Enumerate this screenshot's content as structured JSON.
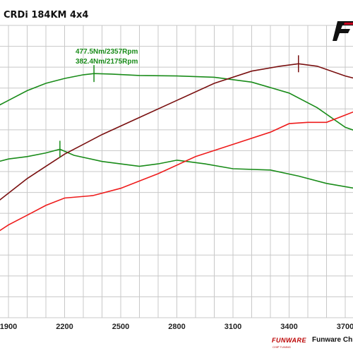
{
  "title": "CRDi 184KM 4x4",
  "brand": {
    "logo_text": "FUNWARE",
    "logo_sub": "CHIP TUNING",
    "footer_text": "Funware Chip",
    "accent_color": "#c8001e"
  },
  "chart_data": {
    "type": "line",
    "xlim": [
      1800,
      3950
    ],
    "ylim": [
      0,
      12
    ],
    "grid": true,
    "x_ticks": [
      1900,
      2200,
      2500,
      2800,
      3100,
      3400,
      3700
    ],
    "x_tick_labels": [
      "1900",
      "2200",
      "2500",
      "2800",
      "3100",
      "3400",
      "3700"
    ],
    "annotations": [
      {
        "text": "477.5Nm/2357Rpm",
        "x": 2357,
        "y": 10.0,
        "color": "#1a8c1a"
      },
      {
        "text": "382.4Nm/2175Rpm",
        "x": 2175,
        "y": 6.9,
        "color": "#1a8c1a"
      }
    ],
    "markers": [
      {
        "x": 2357,
        "y": 10.0,
        "color": "#1a8c1a"
      },
      {
        "x": 2175,
        "y": 6.9,
        "color": "#1a8c1a"
      },
      {
        "x": 3450,
        "y": 10.4,
        "color": "#7a1010"
      }
    ],
    "series": [
      {
        "color": "#1a8c1a",
        "points": [
          [
            1800,
            8.5
          ],
          [
            1900,
            8.9
          ],
          [
            2000,
            9.3
          ],
          [
            2100,
            9.6
          ],
          [
            2200,
            9.8
          ],
          [
            2300,
            9.95
          ],
          [
            2357,
            10.0
          ],
          [
            2450,
            9.98
          ],
          [
            2600,
            9.92
          ],
          [
            2800,
            9.9
          ],
          [
            3000,
            9.85
          ],
          [
            3200,
            9.65
          ],
          [
            3400,
            9.2
          ],
          [
            3550,
            8.6
          ],
          [
            3700,
            7.8
          ],
          [
            3850,
            7.4
          ],
          [
            3950,
            7.2
          ]
        ]
      },
      {
        "color": "#1a8c1a",
        "points": [
          [
            1800,
            6.3
          ],
          [
            1900,
            6.5
          ],
          [
            2000,
            6.6
          ],
          [
            2100,
            6.75
          ],
          [
            2175,
            6.9
          ],
          [
            2250,
            6.65
          ],
          [
            2400,
            6.4
          ],
          [
            2600,
            6.2
          ],
          [
            2700,
            6.3
          ],
          [
            2800,
            6.45
          ],
          [
            2950,
            6.3
          ],
          [
            3100,
            6.1
          ],
          [
            3300,
            6.05
          ],
          [
            3450,
            5.8
          ],
          [
            3600,
            5.5
          ],
          [
            3750,
            5.3
          ],
          [
            3950,
            5.2
          ]
        ]
      },
      {
        "color": "#7a1010",
        "points": [
          [
            1800,
            4.5
          ],
          [
            1900,
            5.1
          ],
          [
            2000,
            5.7
          ],
          [
            2100,
            6.2
          ],
          [
            2200,
            6.7
          ],
          [
            2400,
            7.5
          ],
          [
            2600,
            8.2
          ],
          [
            2800,
            8.9
          ],
          [
            3000,
            9.6
          ],
          [
            3200,
            10.1
          ],
          [
            3350,
            10.3
          ],
          [
            3450,
            10.4
          ],
          [
            3550,
            10.3
          ],
          [
            3700,
            9.9
          ],
          [
            3800,
            9.7
          ],
          [
            3950,
            9.6
          ]
        ]
      },
      {
        "color": "#ee1c1c",
        "points": [
          [
            1800,
            3.3
          ],
          [
            1900,
            3.8
          ],
          [
            2000,
            4.2
          ],
          [
            2100,
            4.6
          ],
          [
            2200,
            4.9
          ],
          [
            2350,
            5.0
          ],
          [
            2500,
            5.3
          ],
          [
            2700,
            5.9
          ],
          [
            2900,
            6.6
          ],
          [
            3100,
            7.1
          ],
          [
            3300,
            7.6
          ],
          [
            3400,
            7.95
          ],
          [
            3500,
            8.0
          ],
          [
            3600,
            8.0
          ],
          [
            3700,
            8.3
          ],
          [
            3800,
            8.6
          ],
          [
            3950,
            8.8
          ]
        ]
      }
    ]
  }
}
